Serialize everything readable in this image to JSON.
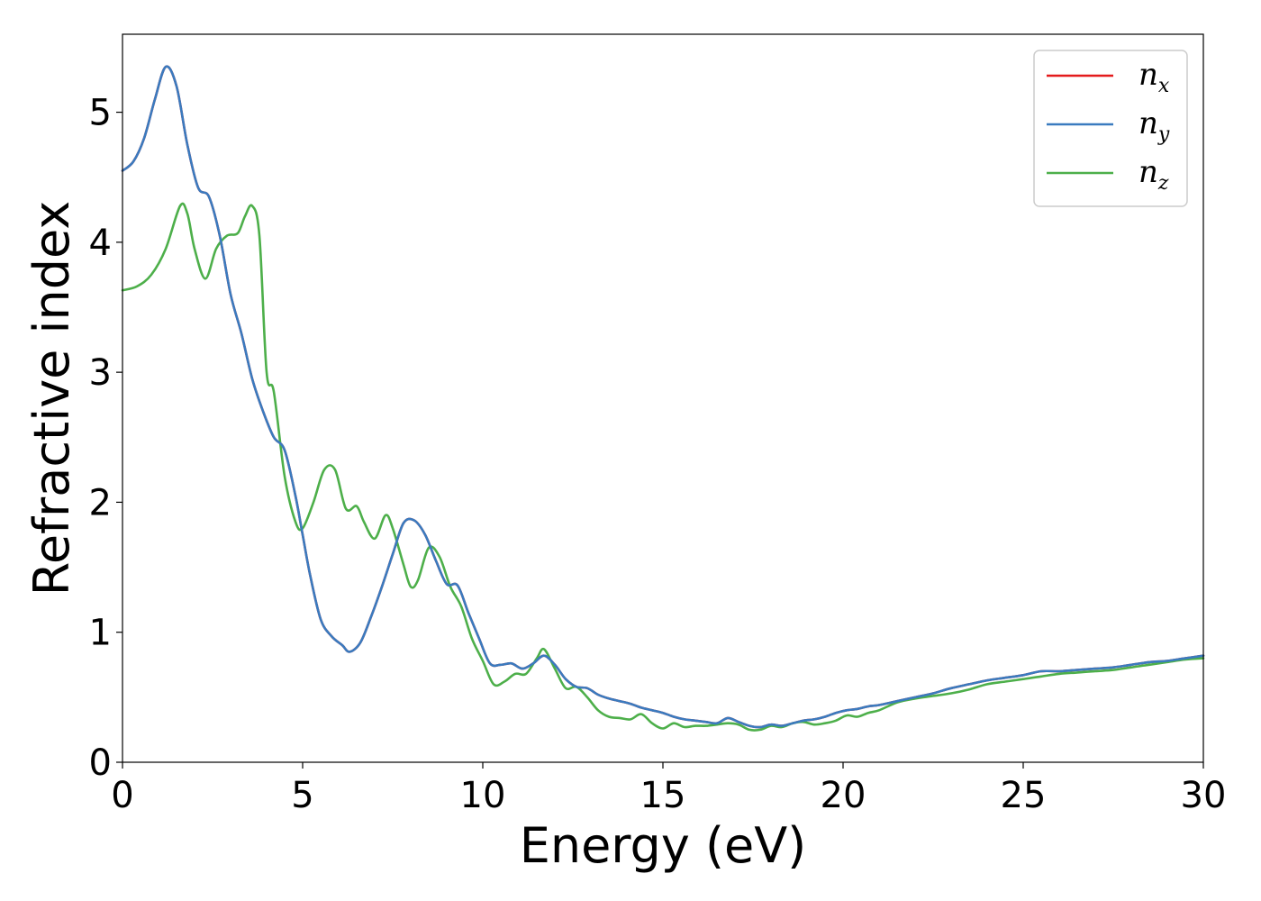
{
  "chart_data": {
    "type": "line",
    "xlabel": "Energy (eV)",
    "ylabel": "Refractive index",
    "xlim": [
      0,
      30
    ],
    "ylim": [
      0,
      5.6
    ],
    "xticks": [
      0,
      5,
      10,
      15,
      20,
      25,
      30
    ],
    "yticks": [
      0,
      1,
      2,
      3,
      4,
      5
    ],
    "grid": false,
    "legend_position": "top-right",
    "series": [
      {
        "name": "n_x",
        "label_base": "n",
        "label_sub": "x",
        "color": "#e41a1c",
        "x": [
          0,
          0.3,
          0.6,
          0.9,
          1.2,
          1.5,
          1.8,
          2.1,
          2.4,
          2.7,
          3.0,
          3.3,
          3.6,
          3.9,
          4.2,
          4.5,
          4.8,
          5.0,
          5.2,
          5.5,
          5.8,
          6.1,
          6.3,
          6.6,
          6.9,
          7.2,
          7.5,
          7.8,
          8.1,
          8.4,
          8.7,
          9.0,
          9.3,
          9.6,
          9.9,
          10.2,
          10.5,
          10.8,
          11.1,
          11.4,
          11.7,
          12.0,
          12.3,
          12.6,
          12.9,
          13.2,
          13.5,
          13.8,
          14.1,
          14.4,
          14.7,
          15.0,
          15.3,
          15.6,
          15.9,
          16.2,
          16.5,
          16.8,
          17.1,
          17.4,
          17.7,
          18.0,
          18.3,
          18.6,
          18.9,
          19.2,
          19.5,
          19.8,
          20.1,
          20.4,
          20.7,
          21.0,
          21.5,
          22.0,
          22.5,
          23.0,
          23.5,
          24.0,
          24.5,
          25.0,
          25.5,
          26.0,
          26.5,
          27.0,
          27.5,
          28.0,
          28.5,
          29.0,
          29.5,
          30.0
        ],
        "y": [
          4.55,
          4.62,
          4.8,
          5.1,
          5.35,
          5.2,
          4.75,
          4.42,
          4.35,
          4.05,
          3.6,
          3.3,
          2.95,
          2.7,
          2.5,
          2.4,
          2.05,
          1.75,
          1.45,
          1.1,
          0.97,
          0.9,
          0.85,
          0.92,
          1.12,
          1.35,
          1.6,
          1.84,
          1.86,
          1.75,
          1.55,
          1.37,
          1.36,
          1.15,
          0.95,
          0.76,
          0.75,
          0.76,
          0.72,
          0.76,
          0.82,
          0.75,
          0.64,
          0.58,
          0.57,
          0.52,
          0.49,
          0.47,
          0.45,
          0.42,
          0.4,
          0.38,
          0.35,
          0.33,
          0.32,
          0.31,
          0.3,
          0.34,
          0.31,
          0.28,
          0.27,
          0.29,
          0.28,
          0.3,
          0.32,
          0.33,
          0.35,
          0.38,
          0.4,
          0.41,
          0.43,
          0.44,
          0.47,
          0.5,
          0.53,
          0.57,
          0.6,
          0.63,
          0.65,
          0.67,
          0.7,
          0.7,
          0.71,
          0.72,
          0.73,
          0.75,
          0.77,
          0.78,
          0.8,
          0.82
        ]
      },
      {
        "name": "n_y",
        "label_base": "n",
        "label_sub": "y",
        "color": "#3a7bbf",
        "x": [
          0,
          0.3,
          0.6,
          0.9,
          1.2,
          1.5,
          1.8,
          2.1,
          2.4,
          2.7,
          3.0,
          3.3,
          3.6,
          3.9,
          4.2,
          4.5,
          4.8,
          5.0,
          5.2,
          5.5,
          5.8,
          6.1,
          6.3,
          6.6,
          6.9,
          7.2,
          7.5,
          7.8,
          8.1,
          8.4,
          8.7,
          9.0,
          9.3,
          9.6,
          9.9,
          10.2,
          10.5,
          10.8,
          11.1,
          11.4,
          11.7,
          12.0,
          12.3,
          12.6,
          12.9,
          13.2,
          13.5,
          13.8,
          14.1,
          14.4,
          14.7,
          15.0,
          15.3,
          15.6,
          15.9,
          16.2,
          16.5,
          16.8,
          17.1,
          17.4,
          17.7,
          18.0,
          18.3,
          18.6,
          18.9,
          19.2,
          19.5,
          19.8,
          20.1,
          20.4,
          20.7,
          21.0,
          21.5,
          22.0,
          22.5,
          23.0,
          23.5,
          24.0,
          24.5,
          25.0,
          25.5,
          26.0,
          26.5,
          27.0,
          27.5,
          28.0,
          28.5,
          29.0,
          29.5,
          30.0
        ],
        "y": [
          4.55,
          4.62,
          4.8,
          5.1,
          5.35,
          5.2,
          4.75,
          4.42,
          4.35,
          4.05,
          3.6,
          3.3,
          2.95,
          2.7,
          2.5,
          2.4,
          2.05,
          1.75,
          1.45,
          1.1,
          0.97,
          0.9,
          0.85,
          0.92,
          1.12,
          1.35,
          1.6,
          1.84,
          1.86,
          1.75,
          1.55,
          1.37,
          1.36,
          1.15,
          0.95,
          0.76,
          0.75,
          0.76,
          0.72,
          0.76,
          0.82,
          0.75,
          0.64,
          0.58,
          0.57,
          0.52,
          0.49,
          0.47,
          0.45,
          0.42,
          0.4,
          0.38,
          0.35,
          0.33,
          0.32,
          0.31,
          0.3,
          0.34,
          0.31,
          0.28,
          0.27,
          0.29,
          0.28,
          0.3,
          0.32,
          0.33,
          0.35,
          0.38,
          0.4,
          0.41,
          0.43,
          0.44,
          0.47,
          0.5,
          0.53,
          0.57,
          0.6,
          0.63,
          0.65,
          0.67,
          0.7,
          0.7,
          0.71,
          0.72,
          0.73,
          0.75,
          0.77,
          0.78,
          0.8,
          0.82
        ]
      },
      {
        "name": "n_z",
        "label_base": "n",
        "label_sub": "z",
        "color": "#4daf4a",
        "x": [
          0,
          0.4,
          0.8,
          1.2,
          1.6,
          1.8,
          2.0,
          2.3,
          2.6,
          2.9,
          3.2,
          3.4,
          3.6,
          3.8,
          4.0,
          4.2,
          4.5,
          4.8,
          5.0,
          5.3,
          5.6,
          5.9,
          6.2,
          6.5,
          6.7,
          7.0,
          7.3,
          7.5,
          7.8,
          8.0,
          8.2,
          8.5,
          8.8,
          9.1,
          9.4,
          9.7,
          10.0,
          10.3,
          10.6,
          10.9,
          11.2,
          11.5,
          11.7,
          12.0,
          12.3,
          12.6,
          12.9,
          13.2,
          13.5,
          13.8,
          14.1,
          14.4,
          14.7,
          15.0,
          15.3,
          15.6,
          15.9,
          16.2,
          16.5,
          16.8,
          17.1,
          17.4,
          17.7,
          18.0,
          18.3,
          18.6,
          18.9,
          19.2,
          19.5,
          19.8,
          20.1,
          20.4,
          20.7,
          21.0,
          21.5,
          22.0,
          22.5,
          23.0,
          23.5,
          24.0,
          24.5,
          25.0,
          25.5,
          26.0,
          26.5,
          27.0,
          27.5,
          28.0,
          28.5,
          29.0,
          29.5,
          30.0
        ],
        "y": [
          3.63,
          3.66,
          3.75,
          3.95,
          4.28,
          4.22,
          3.95,
          3.72,
          3.95,
          4.05,
          4.07,
          4.2,
          4.28,
          4.05,
          3.0,
          2.85,
          2.2,
          1.85,
          1.8,
          2.0,
          2.25,
          2.25,
          1.95,
          1.97,
          1.85,
          1.72,
          1.9,
          1.8,
          1.52,
          1.35,
          1.4,
          1.65,
          1.58,
          1.35,
          1.2,
          0.95,
          0.78,
          0.6,
          0.62,
          0.68,
          0.68,
          0.8,
          0.87,
          0.72,
          0.57,
          0.58,
          0.5,
          0.4,
          0.35,
          0.34,
          0.33,
          0.37,
          0.3,
          0.26,
          0.3,
          0.27,
          0.28,
          0.28,
          0.29,
          0.3,
          0.29,
          0.25,
          0.25,
          0.28,
          0.27,
          0.3,
          0.31,
          0.29,
          0.3,
          0.32,
          0.36,
          0.35,
          0.38,
          0.4,
          0.46,
          0.49,
          0.51,
          0.53,
          0.56,
          0.6,
          0.62,
          0.64,
          0.66,
          0.68,
          0.69,
          0.7,
          0.71,
          0.73,
          0.75,
          0.77,
          0.79,
          0.8
        ]
      }
    ]
  }
}
